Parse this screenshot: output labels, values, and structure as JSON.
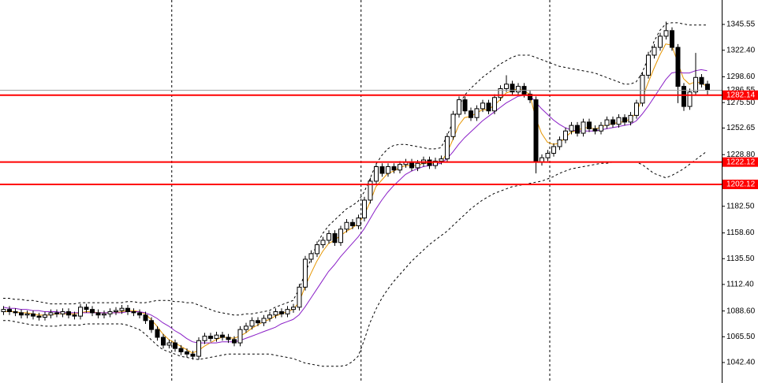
{
  "chart_data": {
    "type": "candlestick",
    "ylim": [
      1024.03,
      1367.45
    ],
    "yticks": [
      {
        "value": 1345.55,
        "label": "1345.55"
      },
      {
        "value": 1322.4,
        "label": "1322.40"
      },
      {
        "value": 1298.6,
        "label": "1298.60"
      },
      {
        "value": 1275.5,
        "label": "1275.50"
      },
      {
        "value": 1252.65,
        "label": "1252.65"
      },
      {
        "value": 1228.8,
        "label": "1228.80"
      },
      {
        "value": 1182.5,
        "label": "1182.50"
      },
      {
        "value": 1158.6,
        "label": "1158.60"
      },
      {
        "value": 1135.5,
        "label": "1135.50"
      },
      {
        "value": 1112.4,
        "label": "1112.40"
      },
      {
        "value": 1088.6,
        "label": "1088.60"
      },
      {
        "value": 1065.5,
        "label": "1065.50"
      },
      {
        "value": 1042.4,
        "label": "1042.40"
      }
    ],
    "grid": false,
    "candles": {
      "up_color": "#ffffff",
      "down_color": "#000000",
      "edge_color": "#000000",
      "open": [
        1088,
        1090,
        1088,
        1087,
        1085,
        1086,
        1084,
        1083,
        1085,
        1087,
        1086,
        1088,
        1085,
        1084,
        1092,
        1090,
        1087,
        1085,
        1086,
        1088,
        1089,
        1091,
        1088,
        1087,
        1085,
        1080,
        1072,
        1065,
        1058,
        1060,
        1055,
        1052,
        1050,
        1048,
        1062,
        1066,
        1064,
        1067,
        1065,
        1063,
        1060,
        1072,
        1075,
        1080,
        1078,
        1082,
        1085,
        1088,
        1086,
        1090,
        1092,
        1110,
        1135,
        1140,
        1148,
        1152,
        1158,
        1150,
        1162,
        1168,
        1165,
        1172,
        1188,
        1205,
        1218,
        1212,
        1218,
        1215,
        1220,
        1222,
        1217,
        1221,
        1224,
        1219,
        1223,
        1225,
        1245,
        1265,
        1278,
        1268,
        1262,
        1270,
        1275,
        1268,
        1280,
        1288,
        1292,
        1285,
        1290,
        1283,
        1278,
        1222,
        1226,
        1230,
        1236,
        1242,
        1250,
        1255,
        1248,
        1258,
        1252,
        1250,
        1255,
        1260,
        1256,
        1262,
        1258,
        1264,
        1275,
        1300,
        1318,
        1325,
        1335,
        1340,
        1325,
        1290,
        1272,
        1285,
        1298,
        1292
      ],
      "high": [
        1093,
        1093,
        1091,
        1090,
        1089,
        1089,
        1087,
        1088,
        1090,
        1090,
        1091,
        1091,
        1088,
        1095,
        1095,
        1093,
        1090,
        1089,
        1091,
        1092,
        1094,
        1094,
        1091,
        1090,
        1088,
        1083,
        1075,
        1068,
        1063,
        1063,
        1058,
        1055,
        1053,
        1065,
        1069,
        1069,
        1070,
        1070,
        1068,
        1066,
        1075,
        1078,
        1083,
        1083,
        1085,
        1088,
        1091,
        1091,
        1093,
        1095,
        1113,
        1138,
        1143,
        1151,
        1155,
        1161,
        1161,
        1165,
        1171,
        1171,
        1175,
        1191,
        1208,
        1221,
        1221,
        1221,
        1221,
        1223,
        1225,
        1225,
        1224,
        1227,
        1227,
        1226,
        1228,
        1248,
        1268,
        1281,
        1281,
        1271,
        1273,
        1278,
        1278,
        1283,
        1291,
        1300,
        1295,
        1293,
        1293,
        1286,
        1281,
        1229,
        1233,
        1239,
        1245,
        1253,
        1258,
        1258,
        1261,
        1261,
        1255,
        1258,
        1263,
        1263,
        1265,
        1265,
        1267,
        1278,
        1303,
        1321,
        1328,
        1338,
        1348,
        1343,
        1328,
        1293,
        1288,
        1320,
        1301,
        1295
      ],
      "low": [
        1085,
        1085,
        1084,
        1082,
        1082,
        1081,
        1080,
        1080,
        1082,
        1083,
        1083,
        1082,
        1081,
        1081,
        1087,
        1084,
        1082,
        1082,
        1083,
        1085,
        1086,
        1085,
        1084,
        1082,
        1077,
        1069,
        1062,
        1055,
        1055,
        1052,
        1049,
        1047,
        1045,
        1045,
        1059,
        1061,
        1061,
        1062,
        1060,
        1057,
        1057,
        1069,
        1072,
        1075,
        1075,
        1079,
        1082,
        1083,
        1083,
        1087,
        1089,
        1107,
        1132,
        1137,
        1145,
        1149,
        1147,
        1147,
        1159,
        1162,
        1162,
        1169,
        1185,
        1202,
        1209,
        1209,
        1212,
        1212,
        1217,
        1214,
        1214,
        1218,
        1216,
        1216,
        1220,
        1222,
        1242,
        1262,
        1265,
        1259,
        1259,
        1267,
        1265,
        1265,
        1277,
        1285,
        1282,
        1282,
        1280,
        1275,
        1212,
        1219,
        1223,
        1227,
        1233,
        1239,
        1247,
        1245,
        1245,
        1249,
        1247,
        1247,
        1252,
        1253,
        1253,
        1255,
        1255,
        1261,
        1272,
        1297,
        1315,
        1322,
        1332,
        1322,
        1275,
        1268,
        1269,
        1282,
        1289,
        1282
      ],
      "close": [
        1090,
        1088,
        1087,
        1085,
        1086,
        1084,
        1083,
        1085,
        1087,
        1086,
        1088,
        1085,
        1084,
        1092,
        1090,
        1087,
        1085,
        1086,
        1088,
        1089,
        1091,
        1088,
        1087,
        1085,
        1080,
        1072,
        1065,
        1058,
        1060,
        1055,
        1052,
        1050,
        1048,
        1062,
        1066,
        1064,
        1067,
        1065,
        1063,
        1060,
        1072,
        1075,
        1080,
        1078,
        1082,
        1085,
        1088,
        1086,
        1090,
        1092,
        1110,
        1135,
        1140,
        1148,
        1152,
        1158,
        1150,
        1162,
        1168,
        1165,
        1172,
        1188,
        1205,
        1218,
        1212,
        1218,
        1215,
        1220,
        1222,
        1217,
        1221,
        1224,
        1219,
        1223,
        1225,
        1245,
        1265,
        1278,
        1268,
        1262,
        1270,
        1275,
        1268,
        1280,
        1288,
        1292,
        1285,
        1290,
        1283,
        1278,
        1222,
        1226,
        1230,
        1236,
        1242,
        1250,
        1255,
        1248,
        1258,
        1252,
        1250,
        1255,
        1260,
        1256,
        1262,
        1258,
        1264,
        1275,
        1300,
        1318,
        1325,
        1335,
        1340,
        1325,
        1290,
        1272,
        1285,
        1298,
        1292,
        1287
      ]
    },
    "lines": [
      {
        "color": "#e69500",
        "style": "solid",
        "values": [
          1088,
          1088,
          1088,
          1087,
          1087,
          1086,
          1085,
          1085,
          1085,
          1086,
          1086,
          1086,
          1086,
          1087,
          1088,
          1088,
          1087,
          1087,
          1087,
          1087,
          1088,
          1089,
          1089,
          1088,
          1086,
          1081,
          1075,
          1068,
          1063,
          1060,
          1057,
          1054,
          1051,
          1053,
          1057,
          1060,
          1063,
          1065,
          1065,
          1064,
          1066,
          1069,
          1073,
          1076,
          1079,
          1081,
          1084,
          1086,
          1088,
          1090,
          1096,
          1110,
          1122,
          1133,
          1142,
          1149,
          1152,
          1156,
          1160,
          1163,
          1167,
          1174,
          1186,
          1200,
          1206,
          1212,
          1214,
          1217,
          1219,
          1219,
          1219,
          1221,
          1221,
          1221,
          1222,
          1230,
          1242,
          1255,
          1262,
          1263,
          1266,
          1269,
          1269,
          1273,
          1278,
          1284,
          1286,
          1288,
          1286,
          1283,
          1262,
          1248,
          1240,
          1238,
          1239,
          1244,
          1249,
          1250,
          1253,
          1253,
          1252,
          1253,
          1256,
          1256,
          1258,
          1258,
          1261,
          1266,
          1279,
          1293,
          1306,
          1318,
          1328,
          1327,
          1312,
          1297,
          1292,
          1294,
          1293,
          1290
        ]
      },
      {
        "color": "#8a1fc7",
        "style": "solid",
        "values": [
          1092,
          1091,
          1091,
          1090,
          1090,
          1089,
          1089,
          1088,
          1088,
          1088,
          1087,
          1087,
          1087,
          1087,
          1087,
          1087,
          1087,
          1087,
          1087,
          1087,
          1087,
          1088,
          1088,
          1088,
          1087,
          1085,
          1082,
          1078,
          1075,
          1071,
          1068,
          1064,
          1061,
          1060,
          1060,
          1060,
          1060,
          1061,
          1061,
          1061,
          1062,
          1064,
          1066,
          1068,
          1070,
          1072,
          1074,
          1077,
          1079,
          1081,
          1085,
          1092,
          1100,
          1108,
          1116,
          1124,
          1130,
          1137,
          1143,
          1149,
          1155,
          1162,
          1171,
          1180,
          1188,
          1195,
          1201,
          1206,
          1211,
          1214,
          1216,
          1218,
          1219,
          1220,
          1221,
          1225,
          1231,
          1238,
          1244,
          1249,
          1254,
          1259,
          1263,
          1267,
          1271,
          1275,
          1278,
          1281,
          1282,
          1282,
          1276,
          1270,
          1265,
          1260,
          1256,
          1253,
          1251,
          1250,
          1250,
          1250,
          1250,
          1251,
          1252,
          1253,
          1254,
          1255,
          1256,
          1259,
          1265,
          1272,
          1280,
          1288,
          1296,
          1302,
          1303,
          1302,
          1302,
          1304,
          1305,
          1304
        ]
      },
      {
        "color": "#000000",
        "style": "dashed",
        "values": [
          1100,
          1100,
          1099,
          1099,
          1098,
          1098,
          1097,
          1096,
          1095,
          1095,
          1095,
          1095,
          1095,
          1096,
          1096,
          1096,
          1096,
          1096,
          1096,
          1096,
          1096,
          1097,
          1097,
          1096,
          1096,
          1097,
          1098,
          1098,
          1098,
          1097,
          1097,
          1096,
          1096,
          1094,
          1092,
          1090,
          1088,
          1087,
          1086,
          1085,
          1085,
          1086,
          1086,
          1087,
          1088,
          1089,
          1092,
          1094,
          1096,
          1098,
          1108,
          1122,
          1135,
          1148,
          1158,
          1165,
          1170,
          1175,
          1180,
          1183,
          1187,
          1195,
          1207,
          1220,
          1228,
          1234,
          1237,
          1238,
          1238,
          1237,
          1236,
          1235,
          1234,
          1234,
          1235,
          1245,
          1258,
          1272,
          1282,
          1288,
          1293,
          1298,
          1302,
          1306,
          1310,
          1313,
          1316,
          1318,
          1318,
          1318,
          1316,
          1314,
          1312,
          1310,
          1308,
          1307,
          1306,
          1305,
          1304,
          1303,
          1302,
          1300,
          1298,
          1296,
          1294,
          1292,
          1292,
          1294,
          1302,
          1315,
          1330,
          1340,
          1346,
          1347,
          1347,
          1346,
          1345,
          1345,
          1345,
          1345
        ]
      },
      {
        "color": "#000000",
        "style": "dashed",
        "values": [
          1080,
          1080,
          1079,
          1078,
          1077,
          1076,
          1076,
          1075,
          1075,
          1075,
          1076,
          1076,
          1076,
          1076,
          1077,
          1077,
          1077,
          1077,
          1077,
          1077,
          1077,
          1076,
          1074,
          1072,
          1068,
          1063,
          1058,
          1054,
          1052,
          1050,
          1048,
          1047,
          1046,
          1045,
          1046,
          1047,
          1048,
          1049,
          1050,
          1050,
          1050,
          1050,
          1050,
          1050,
          1050,
          1050,
          1049,
          1048,
          1047,
          1046,
          1044,
          1042,
          1041,
          1040,
          1039,
          1039,
          1039,
          1039,
          1040,
          1043,
          1048,
          1062,
          1078,
          1090,
          1100,
          1108,
          1115,
          1121,
          1127,
          1133,
          1138,
          1143,
          1148,
          1152,
          1156,
          1160,
          1165,
          1170,
          1175,
          1180,
          1184,
          1188,
          1191,
          1194,
          1196,
          1198,
          1200,
          1201,
          1202,
          1203,
          1204,
          1205,
          1207,
          1209,
          1212,
          1214,
          1216,
          1217,
          1218,
          1219,
          1220,
          1221,
          1221,
          1222,
          1222,
          1222,
          1222,
          1222,
          1220,
          1216,
          1212,
          1210,
          1208,
          1210,
          1213,
          1216,
          1220,
          1224,
          1228,
          1232
        ]
      }
    ],
    "levels": [
      {
        "value": 1282.14,
        "color": "#ff0000"
      },
      {
        "value": 1222.12,
        "color": "#ff0000"
      },
      {
        "value": 1202.12,
        "color": "#ff0000"
      }
    ],
    "last_price": {
      "value": 1286.55,
      "color": "#a0a0a0"
    }
  }
}
